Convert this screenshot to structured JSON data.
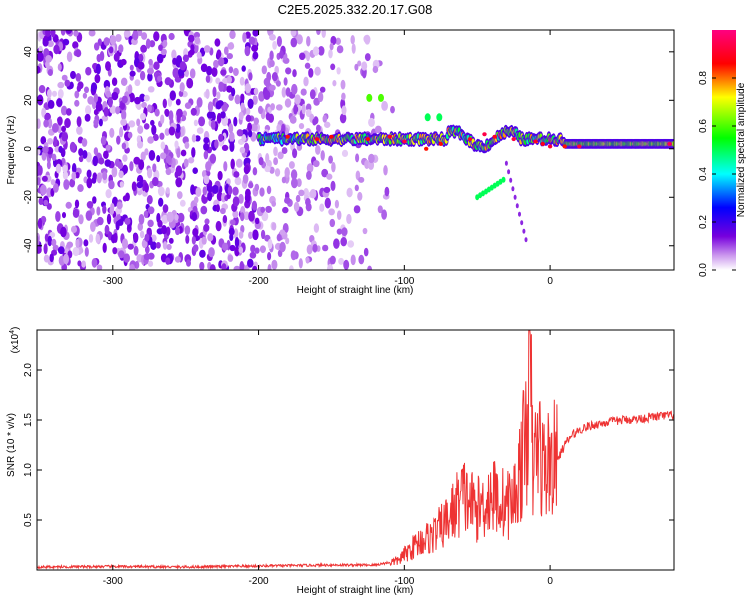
{
  "figure": {
    "title": "C2E5.2025.332.20.17.G08"
  },
  "chart_data": [
    {
      "type": "heatmap",
      "xlabel": "Height of straight line (km)",
      "ylabel": "Frequency (Hz)",
      "xlim": [
        -352,
        85
      ],
      "ylim": [
        -50,
        49
      ],
      "xticks": [
        -300,
        -200,
        -100,
        0
      ],
      "yticks": [
        -40,
        -20,
        0,
        20,
        40
      ],
      "colorbar": {
        "label": "Normalized spectral amplitude",
        "range": [
          0,
          1
        ],
        "ticks": [
          "0.0",
          "0.2",
          "0.4",
          "0.6",
          "0.8"
        ],
        "colormap": "rainbow (violet → blue → cyan → green → yellow → red → magenta)"
      },
      "features": [
        {
          "name": "carrier trace",
          "x_range": [
            -200,
            85
          ],
          "frequency_hz": 4,
          "amplitude": "0.5–1.0"
        },
        {
          "name": "cluster",
          "x": -120,
          "frequency_hz": 21,
          "amplitude": 0.6
        },
        {
          "name": "cluster",
          "x": -80,
          "frequency_hz": 13,
          "amplitude": 0.5
        },
        {
          "name": "branch",
          "x_range": [
            -50,
            -32
          ],
          "frequency_hz": -16,
          "amplitude": 0.5
        },
        {
          "name": "background noise",
          "x_range": [
            -352,
            -110
          ],
          "frequency_hz": "-50 to 49",
          "amplitude": "0.0–0.2"
        }
      ]
    },
    {
      "type": "line",
      "xlabel": "Height of straight line (km)",
      "ylabel": "SNR (10 * v/v)",
      "yscale_label": "(x10",
      "yscale_exp": "4",
      "xlim": [
        -352,
        85
      ],
      "ylim": [
        0,
        24000
      ],
      "xticks": [
        -300,
        -200,
        -100,
        0
      ],
      "yticks": [
        0.5,
        1.0,
        1.5,
        2.0
      ],
      "ytick_labels": [
        "0.5",
        "1.0",
        "1.5",
        "2.0"
      ],
      "color": "#ee3333",
      "series": [
        {
          "name": "SNR",
          "x": [
            -352,
            -300,
            -250,
            -200,
            -150,
            -120,
            -105,
            -100,
            -90,
            -80,
            -70,
            -60,
            -50,
            -40,
            -30,
            -25,
            -22,
            -20,
            -18,
            -16,
            -14,
            -12,
            -10,
            -8,
            -6,
            -4,
            -2,
            0,
            5,
            10,
            15,
            20,
            25,
            30,
            40,
            50,
            60,
            70,
            85
          ],
          "y": [
            300,
            350,
            300,
            400,
            500,
            500,
            900,
            1500,
            2800,
            3500,
            5000,
            7500,
            6000,
            7500,
            6500,
            7000,
            9000,
            10500,
            12000,
            14000,
            24000,
            10000,
            11500,
            13000,
            11000,
            10000,
            10500,
            11000,
            11000,
            12500,
            13500,
            14000,
            14300,
            14500,
            14800,
            15000,
            15100,
            15300,
            15500
          ]
        }
      ]
    }
  ]
}
